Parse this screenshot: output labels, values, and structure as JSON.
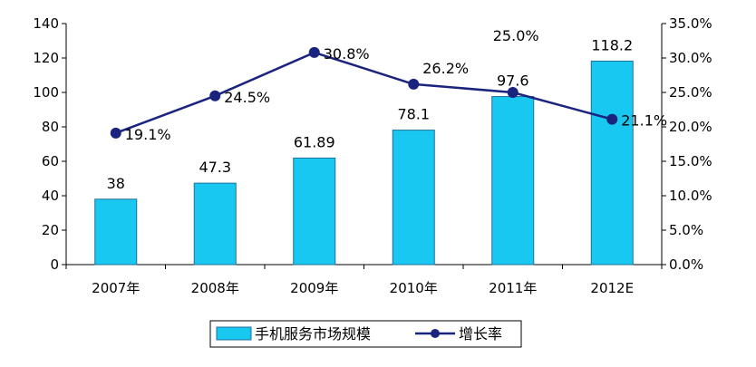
{
  "chart_data": {
    "type": "bar",
    "categories": [
      "2007年",
      "2008年",
      "2009年",
      "2010年",
      "2011年",
      "2012E"
    ],
    "series": [
      {
        "name": "手机服务市场规模",
        "type": "bar",
        "axis": "left",
        "values": [
          38,
          47.3,
          61.89,
          78.1,
          97.6,
          118.2
        ],
        "labels": [
          "38",
          "47.3",
          "61.89",
          "78.1",
          "97.6",
          "118.2"
        ]
      },
      {
        "name": "增长率",
        "type": "line",
        "axis": "right",
        "values": [
          19.1,
          24.5,
          30.8,
          26.2,
          25.0,
          21.1
        ],
        "labels": [
          "19.1%",
          "24.5%",
          "30.8%",
          "26.2%",
          "25.0%",
          "21.1%"
        ]
      }
    ],
    "yleft_ticks": [
      "0",
      "20",
      "40",
      "60",
      "80",
      "100",
      "120",
      "140"
    ],
    "yleft_lim": [
      0,
      140
    ],
    "yright_ticks": [
      "0.0%",
      "5.0%",
      "10.0%",
      "15.0%",
      "20.0%",
      "25.0%",
      "30.0%",
      "35.0%"
    ],
    "yright_lim": [
      0,
      35
    ],
    "grid": false,
    "legend_position": "bottom",
    "colors": {
      "bar_fill": "#19c8f1",
      "bar_stroke": "#1f6f99",
      "line": "#1a237e",
      "axis": "#000000"
    }
  }
}
